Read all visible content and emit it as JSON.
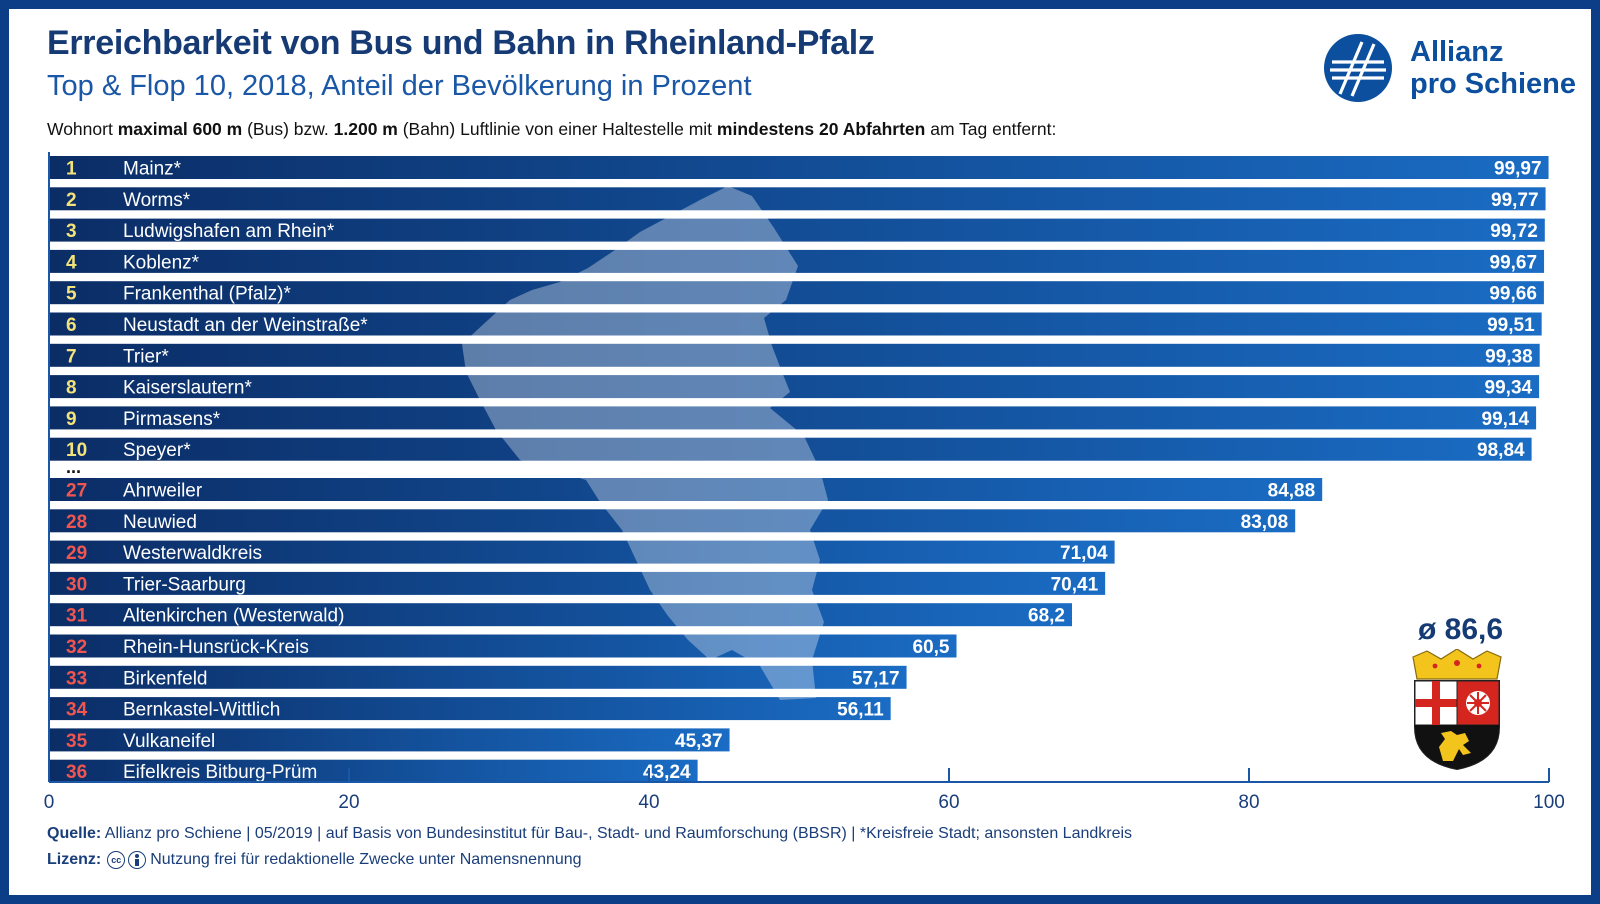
{
  "header": {
    "title": "Erreichbarkeit von Bus und Bahn in Rheinland-Pfalz",
    "subtitle": "Top & Flop 10, 2018, Anteil der Bevölkerung in Prozent",
    "note_parts": {
      "p1": "Wohnort ",
      "b1": "maximal 600 m",
      "p2": " (Bus) bzw. ",
      "b2": "1.200 m",
      "p3": " (Bahn) Luftlinie von einer Haltestelle mit ",
      "b3": "mindestens 20 Abfahrten",
      "p4": " am Tag entfernt:"
    }
  },
  "logo": {
    "line1": "Allianz",
    "line2": "pro Schiene",
    "icon": "allianz-pro-schiene-logo-icon"
  },
  "average_label": "ø 86,6",
  "coat_of_arms_icon": "rheinland-pfalz-coat-of-arms-icon",
  "map_icon": "rheinland-pfalz-map-silhouette-icon",
  "ellipsis": "...",
  "footer": {
    "source_label": "Quelle:",
    "source_text": " Allianz pro Schiene | 05/2019 | auf Basis von Bundesinstitut für Bau-, Stadt- und Raumforschung (BBSR) | *Kreisfreie Stadt; ansonsten Landkreis",
    "license_label": "Lizenz:",
    "license_text": "Nutzung frei für redaktionelle Zwecke unter Namensnennung",
    "cc_icon_text": "cc"
  },
  "colors": {
    "bar_dark": "#0b2d66",
    "bar_light": "#1a6cc4",
    "rank_top": "#f4e27a",
    "rank_flop": "#f0564f",
    "frame": "#0b3e86"
  },
  "chart_data": {
    "type": "bar",
    "orientation": "horizontal",
    "xlim": [
      0,
      100
    ],
    "xticks": [
      0,
      20,
      40,
      60,
      80,
      100
    ],
    "xtick_labels": [
      "0",
      "20",
      "40",
      "60",
      "80",
      "100"
    ],
    "groups": [
      {
        "name": "top",
        "ranks": [
          "1",
          "2",
          "3",
          "4",
          "5",
          "6",
          "7",
          "8",
          "9",
          "10"
        ],
        "categories": [
          "Mainz*",
          "Worms*",
          "Ludwigshafen am Rhein*",
          "Koblenz*",
          "Frankenthal (Pfalz)*",
          "Neustadt an der Weinstraße*",
          "Trier*",
          "Kaiserslautern*",
          "Pirmasens*",
          "Speyer*"
        ],
        "values": [
          99.97,
          99.77,
          99.72,
          99.67,
          99.66,
          99.51,
          99.38,
          99.34,
          99.14,
          98.84
        ],
        "value_labels": [
          "99,97",
          "99,77",
          "99,72",
          "99,67",
          "99,66",
          "99,51",
          "99,38",
          "99,34",
          "99,14",
          "98,84"
        ]
      },
      {
        "name": "flop",
        "ranks": [
          "27",
          "28",
          "29",
          "30",
          "31",
          "32",
          "33",
          "34",
          "35",
          "36"
        ],
        "categories": [
          "Ahrweiler",
          "Neuwied",
          "Westerwaldkreis",
          "Trier-Saarburg",
          "Altenkirchen (Westerwald)",
          "Rhein-Hunsrück-Kreis",
          "Birkenfeld",
          "Bernkastel-Wittlich",
          "Vulkaneifel",
          "Eifelkreis Bitburg-Prüm"
        ],
        "values": [
          84.88,
          83.08,
          71.04,
          70.41,
          68.2,
          60.5,
          57.17,
          56.11,
          45.37,
          43.24
        ],
        "value_labels": [
          "84,88",
          "83,08",
          "71,04",
          "70,41",
          "68,2",
          "60,5",
          "57,17",
          "56,11",
          "45,37",
          "43,24"
        ]
      }
    ],
    "average": 86.6
  }
}
